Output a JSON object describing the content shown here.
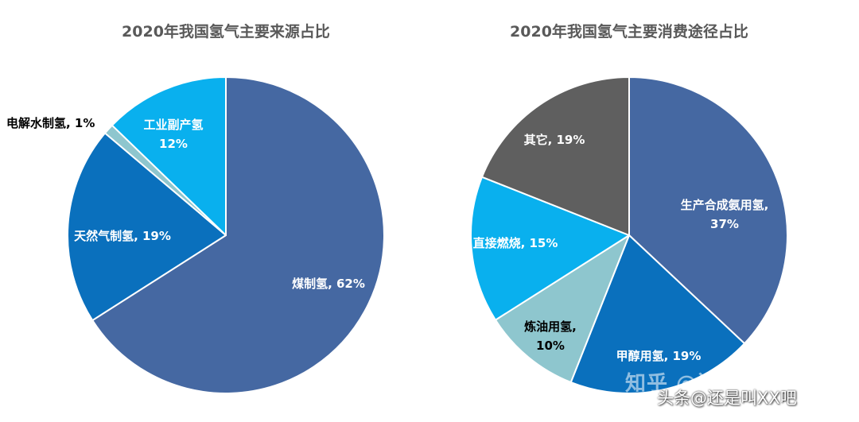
{
  "chart_data": [
    {
      "type": "pie",
      "title": "2020年我国氢气主要来源占比",
      "start": "top",
      "direction": "clockwise",
      "slices": [
        {
          "name": "煤制氢",
          "value": 62,
          "label_lines": [
            "煤制氢, 62%"
          ],
          "color": "#4568A2",
          "label_color": "#ffffff"
        },
        {
          "name": "天然气制氢",
          "value": 19,
          "label_lines": [
            "天然气制氢, 19%"
          ],
          "color": "#0A70BD",
          "label_color": "#ffffff"
        },
        {
          "name": "电解水制氢",
          "value": 1,
          "label_lines": [
            "电解水制氢, 1%"
          ],
          "color": "#8EC6CE",
          "label_color": "#000000"
        },
        {
          "name": "工业副产氢",
          "value": 12,
          "label_lines": [
            "工业副产氢",
            "12%"
          ],
          "color": "#09B0EE",
          "label_color": "#ffffff"
        }
      ]
    },
    {
      "type": "pie",
      "title": "2020年我国氢气主要消费途径占比",
      "start": "top",
      "direction": "clockwise",
      "slices": [
        {
          "name": "生产合成氨用氢",
          "value": 37,
          "label_lines": [
            "生产合成氨用氢,",
            "37%"
          ],
          "color": "#4568A2",
          "label_color": "#ffffff"
        },
        {
          "name": "甲醇用氢",
          "value": 19,
          "label_lines": [
            "甲醇用氢, 19%"
          ],
          "color": "#0A70BD",
          "label_color": "#ffffff"
        },
        {
          "name": "炼油用氢",
          "value": 10,
          "label_lines": [
            "炼油用氢,",
            "10%"
          ],
          "color": "#8EC6CE",
          "label_color": "#000000"
        },
        {
          "name": "直接燃烧",
          "value": 15,
          "label_lines": [
            "直接燃烧, 15%"
          ],
          "color": "#09B0EE",
          "label_color": "#ffffff"
        },
        {
          "name": "其它",
          "value": 19,
          "label_lines": [
            "其它, 19%"
          ],
          "color": "#5F5F5F",
          "label_color": "#ffffff"
        }
      ]
    }
  ],
  "watermark": {
    "zhihu": "知乎 @还是叫XX吧",
    "toutiao": "头条@还是叫XX吧"
  }
}
